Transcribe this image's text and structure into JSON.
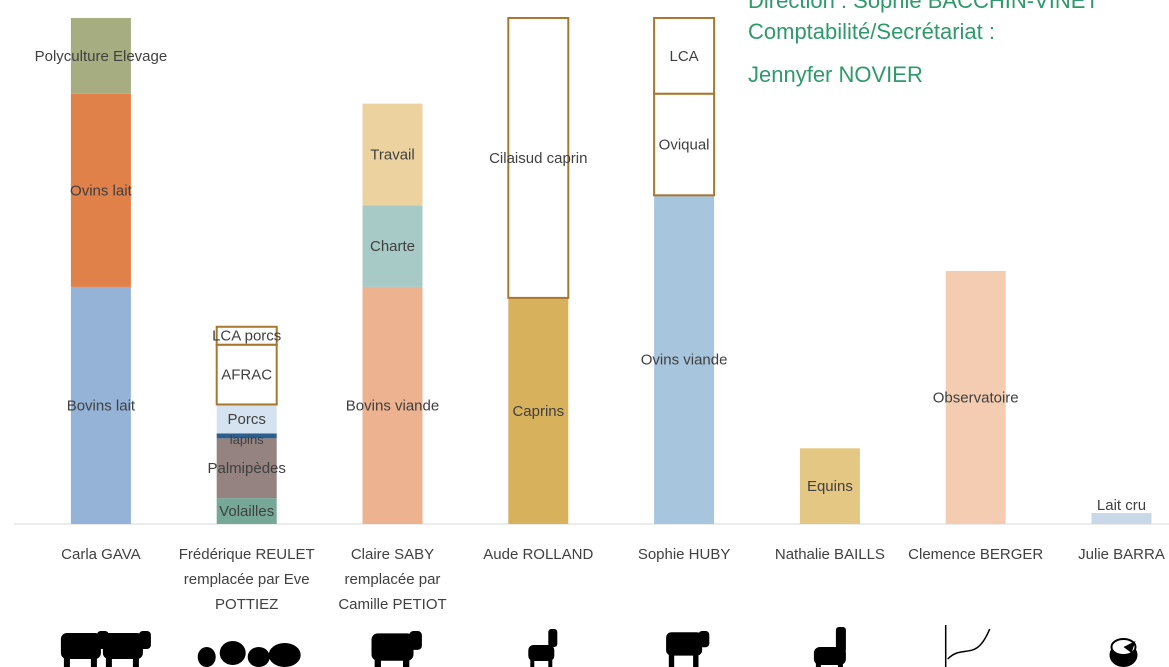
{
  "header": {
    "direction": "Direction : Sophie BACCHIN-VINET",
    "compta": "Comptabilité/Secrétariat :",
    "compta_name": "Jennyfer NOVIER"
  },
  "chart_data": {
    "type": "bar",
    "stacked": true,
    "title": "",
    "xlabel": "",
    "ylabel": "",
    "ylim": [
      0,
      510
    ],
    "grid": false,
    "categories": [
      [
        "Carla GAVA"
      ],
      [
        "Frédérique REULET",
        "remplacée par Eve",
        "POTTIEZ"
      ],
      [
        "Claire SABY",
        "remplacée par",
        "Camille PETIOT"
      ],
      [
        "Aude ROLLAND"
      ],
      [
        "Sophie HUBY"
      ],
      [
        "Nathalie BAILLS"
      ],
      [
        "Clemence BERGER"
      ],
      [
        "Julie BARRA"
      ]
    ],
    "bars": [
      {
        "segments": [
          {
            "label": "Bovins lait",
            "value": 238,
            "color": "#95b3d7",
            "outlined": false
          },
          {
            "label": "Ovins lait",
            "value": 194,
            "color": "#e0814a",
            "outlined": false
          },
          {
            "label": "Polyculture Elevage",
            "value": 76,
            "color": "#a6ad81",
            "outlined": false
          }
        ]
      },
      {
        "segments": [
          {
            "label": "Volailles",
            "value": 26,
            "color": "#76a898",
            "outlined": false
          },
          {
            "label": "Palmipèdes",
            "value": 60,
            "color": "#948380",
            "outlined": false
          },
          {
            "label": "lapins",
            "value": 5,
            "color": "#2c5f8e",
            "outlined": false
          },
          {
            "label": "Porcs",
            "value": 29,
            "color": "#d5e3f0",
            "outlined": false
          },
          {
            "label": "AFRAC",
            "value": 60,
            "color": "#ffffff",
            "outlined": true
          },
          {
            "label": "LCA porcs",
            "value": 18,
            "color": "#ffffff",
            "outlined": true
          }
        ]
      },
      {
        "segments": [
          {
            "label": "Bovins viande",
            "value": 238,
            "color": "#edb290",
            "outlined": false
          },
          {
            "label": "Charte",
            "value": 82,
            "color": "#a8cac6",
            "outlined": false
          },
          {
            "label": "Travail",
            "value": 102,
            "color": "#ecd29e",
            "outlined": false
          }
        ]
      },
      {
        "segments": [
          {
            "label": "Caprins",
            "value": 227,
            "color": "#d8b15c",
            "outlined": false
          },
          {
            "label": "Cilaisud caprin",
            "value": 281,
            "color": "#ffffff",
            "outlined": true
          }
        ]
      },
      {
        "segments": [
          {
            "label": "Ovins viande",
            "value": 330,
            "color": "#a8c5de",
            "outlined": false
          },
          {
            "label": "Oviqual",
            "value": 102,
            "color": "#ffffff",
            "outlined": true
          },
          {
            "label": "LCA",
            "value": 76,
            "color": "#ffffff",
            "outlined": true
          }
        ]
      },
      {
        "segments": [
          {
            "label": "Equins",
            "value": 76,
            "color": "#e5c784",
            "outlined": false
          }
        ]
      },
      {
        "segments": [
          {
            "label": "Observatoire",
            "value": 254,
            "color": "#f3ccb1",
            "outlined": false
          }
        ]
      },
      {
        "segments": [
          {
            "label": "Lait cru",
            "value": 11,
            "color": "#c9d8e8",
            "outlined": false
          }
        ]
      }
    ],
    "icons": [
      "cow-sheep-icon",
      "poultry-rabbit-pig-icon",
      "cow-icon",
      "goat-icon",
      "sheep-icon",
      "horse-icon",
      "trend-curve-icon",
      "cheese-icon"
    ]
  }
}
